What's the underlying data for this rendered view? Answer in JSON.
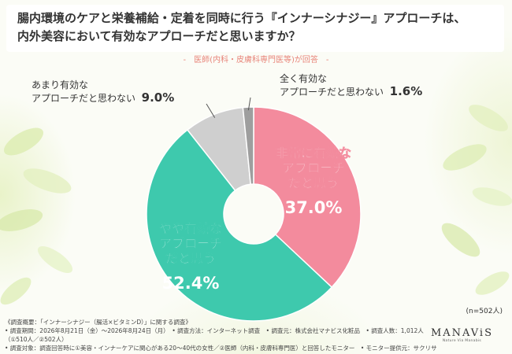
{
  "title_lines": [
    "腸内環境のケアと栄養補給・定着を同時に行う『インナーシナジー』アプローチは、",
    "内外美容において有効なアプローチだと思いますか？"
  ],
  "subtitle": "-　医師(内科・皮膚科専門医等)が回答　-",
  "n_label": "(n=502人)",
  "colors": {
    "very_effective": "#f38b9d",
    "somewhat_effective": "#3ec9ad",
    "not_very_effective": "#cfcfcf",
    "not_at_all": "#9e9e9e",
    "subtitle": "#e8857a"
  },
  "chart_data": {
    "type": "pie",
    "donut": true,
    "slices": [
      {
        "label_lines": [
          "非常に有効な",
          "アプローチ",
          "だと思う"
        ],
        "value": 37.0,
        "display": "37.0%"
      },
      {
        "label_lines": [
          "やや有効な",
          "アプローチ",
          "だと思う"
        ],
        "value": 52.4,
        "display": "52.4%"
      },
      {
        "label_lines": [
          "あまり有効な",
          "アプローチだと思わない"
        ],
        "value": 9.0,
        "display": "9.0%"
      },
      {
        "label_lines": [
          "全く有効な",
          "アプローチだと思わない"
        ],
        "value": 1.6,
        "display": "1.6%"
      }
    ]
  },
  "footnotes": [
    "《調査概要：「インナーシナジー（腸活×ビタミンD）」に関する調査》",
    "• 調査期間：2026年8月21日（金）〜2026年8月24日（月）　• 調査方法：インターネット調査　• 調査元：株式会社マナビス化粧品　• 調査人数：1,012人（①510人／②502人）",
    "• 調査対象：調査回答時に①美容・インナーケアに関心がある20〜40代の女性／②医師（内科・皮膚科専門医）と回答したモニター　• モニター提供元：サクリサ"
  ],
  "logo": {
    "name": "MANAViS",
    "tagline": "Nature Via Manabis"
  }
}
